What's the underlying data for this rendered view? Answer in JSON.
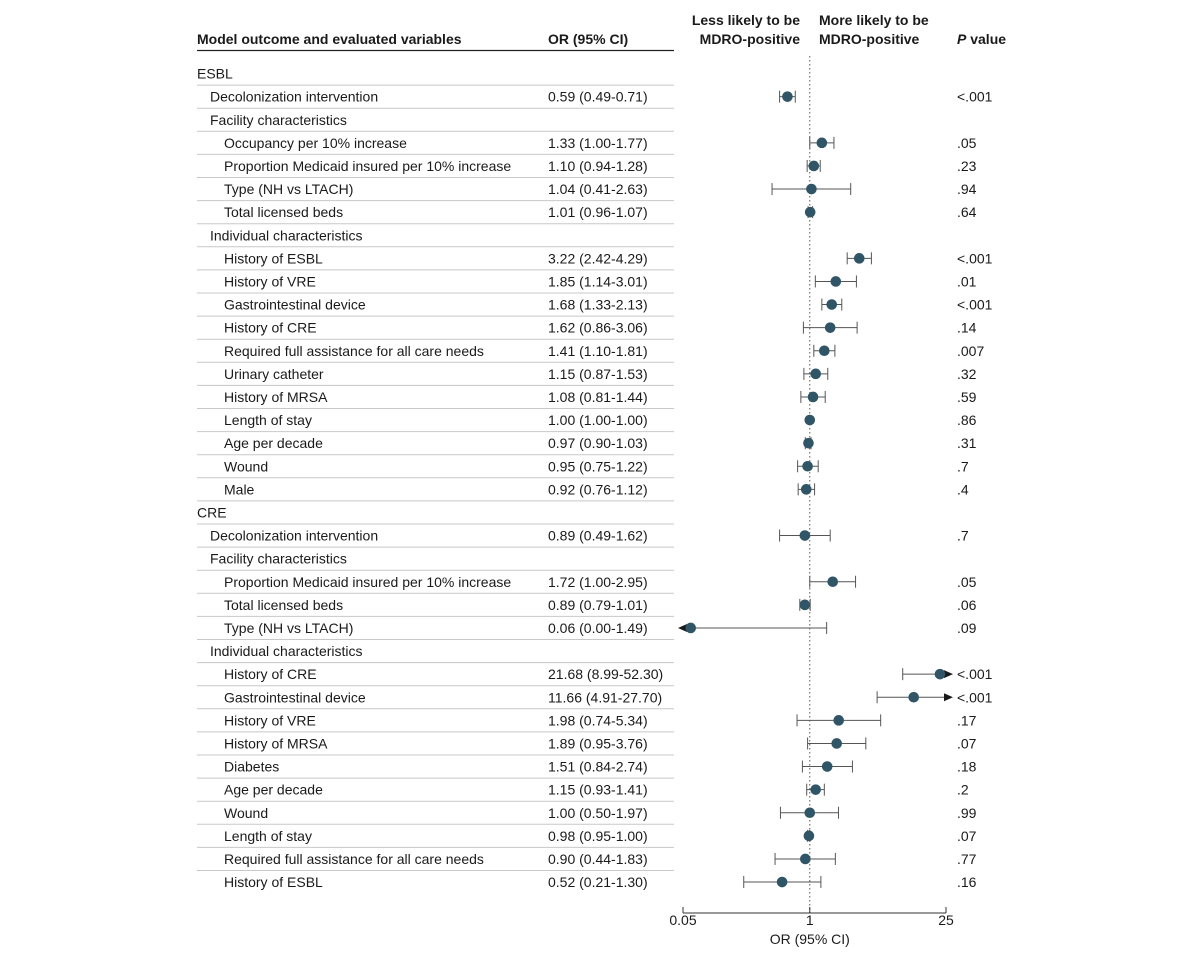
{
  "header": {
    "col_variable": "Model outcome and evaluated variables",
    "col_or": "OR (95% CI)",
    "less_likely": [
      "Less likely to be",
      "MDRO-positive"
    ],
    "more_likely": [
      "More likely to be",
      "MDRO-positive"
    ],
    "p_italic": "P",
    "p_rest": " value"
  },
  "chart_data": {
    "type": "forest",
    "scale": "log",
    "xlabel": "OR (95% CI)",
    "xlim": [
      0.05,
      25
    ],
    "x_ticks": [
      0.05,
      1,
      25
    ],
    "x_tick_labels": [
      "0.05",
      "1",
      "25"
    ],
    "reference_line": 1,
    "colors": {
      "point": "#2f5566",
      "whisker": "#555555",
      "divider": "#c8c8c8",
      "reference": "#555555"
    },
    "rows": [
      {
        "label": "ESBL",
        "indent": 0,
        "type": "group"
      },
      {
        "label": "Decolonization intervention",
        "indent": 1,
        "ci_text": "0.59 (0.49-0.71)",
        "p": "<.001",
        "or": 0.59,
        "lo": 0.49,
        "hi": 0.71
      },
      {
        "label": "Facility characteristics",
        "indent": 1,
        "type": "group"
      },
      {
        "label": "Occupancy per 10% increase",
        "indent": 2,
        "ci_text": "1.33 (1.00-1.77)",
        "p": ".05",
        "or": 1.33,
        "lo": 1.0,
        "hi": 1.77
      },
      {
        "label": "Proportion Medicaid insured per 10% increase",
        "indent": 2,
        "ci_text": "1.10 (0.94-1.28)",
        "p": ".23",
        "or": 1.1,
        "lo": 0.94,
        "hi": 1.28
      },
      {
        "label": "Type (NH vs LTACH)",
        "indent": 2,
        "ci_text": "1.04 (0.41-2.63)",
        "p": ".94",
        "or": 1.04,
        "lo": 0.41,
        "hi": 2.63
      },
      {
        "label": "Total licensed beds",
        "indent": 2,
        "ci_text": "1.01 (0.96-1.07)",
        "p": ".64",
        "or": 1.01,
        "lo": 0.96,
        "hi": 1.07
      },
      {
        "label": "Individual characteristics",
        "indent": 1,
        "type": "group"
      },
      {
        "label": "History of ESBL",
        "indent": 2,
        "ci_text": "3.22 (2.42-4.29)",
        "p": "<.001",
        "or": 3.22,
        "lo": 2.42,
        "hi": 4.29
      },
      {
        "label": "History of VRE",
        "indent": 2,
        "ci_text": "1.85 (1.14-3.01)",
        "p": ".01",
        "or": 1.85,
        "lo": 1.14,
        "hi": 3.01
      },
      {
        "label": "Gastrointestinal device",
        "indent": 2,
        "ci_text": "1.68 (1.33-2.13)",
        "p": "<.001",
        "or": 1.68,
        "lo": 1.33,
        "hi": 2.13
      },
      {
        "label": "History of CRE",
        "indent": 2,
        "ci_text": "1.62 (0.86-3.06)",
        "p": ".14",
        "or": 1.62,
        "lo": 0.86,
        "hi": 3.06
      },
      {
        "label": "Required full assistance for all care needs",
        "indent": 2,
        "ci_text": "1.41 (1.10-1.81)",
        "p": ".007",
        "or": 1.41,
        "lo": 1.1,
        "hi": 1.81
      },
      {
        "label": "Urinary catheter",
        "indent": 2,
        "ci_text": "1.15 (0.87-1.53)",
        "p": ".32",
        "or": 1.15,
        "lo": 0.87,
        "hi": 1.53
      },
      {
        "label": "History of MRSA",
        "indent": 2,
        "ci_text": "1.08 (0.81-1.44)",
        "p": ".59",
        "or": 1.08,
        "lo": 0.81,
        "hi": 1.44
      },
      {
        "label": "Length of stay",
        "indent": 2,
        "ci_text": "1.00 (1.00-1.00)",
        "p": ".86",
        "or": 1.0,
        "lo": 1.0,
        "hi": 1.0
      },
      {
        "label": "Age per decade",
        "indent": 2,
        "ci_text": "0.97 (0.90-1.03)",
        "p": ".31",
        "or": 0.97,
        "lo": 0.9,
        "hi": 1.03
      },
      {
        "label": "Wound",
        "indent": 2,
        "ci_text": "0.95 (0.75-1.22)",
        "p": ".7",
        "or": 0.95,
        "lo": 0.75,
        "hi": 1.22
      },
      {
        "label": "Male",
        "indent": 2,
        "ci_text": "0.92 (0.76-1.12)",
        "p": ".4",
        "or": 0.92,
        "lo": 0.76,
        "hi": 1.12
      },
      {
        "label": "CRE",
        "indent": 0,
        "type": "group"
      },
      {
        "label": "Decolonization intervention",
        "indent": 1,
        "ci_text": "0.89 (0.49-1.62)",
        "p": ".7",
        "or": 0.89,
        "lo": 0.49,
        "hi": 1.62
      },
      {
        "label": "Facility characteristics",
        "indent": 1,
        "type": "group"
      },
      {
        "label": "Proportion Medicaid insured per 10% increase",
        "indent": 2,
        "ci_text": "1.72 (1.00-2.95)",
        "p": ".05",
        "or": 1.72,
        "lo": 1.0,
        "hi": 2.95
      },
      {
        "label": "Total licensed beds",
        "indent": 2,
        "ci_text": "0.89 (0.79-1.01)",
        "p": ".06",
        "or": 0.89,
        "lo": 0.79,
        "hi": 1.01
      },
      {
        "label": "Type (NH vs LTACH)",
        "indent": 2,
        "ci_text": "0.06 (0.00-1.49)",
        "p": ".09",
        "or": 0.06,
        "lo": 0.0,
        "hi": 1.49
      },
      {
        "label": "Individual characteristics",
        "indent": 1,
        "type": "group"
      },
      {
        "label": "History of CRE",
        "indent": 2,
        "ci_text": "21.68 (8.99-52.30)",
        "p": "<.001",
        "or": 21.68,
        "lo": 8.99,
        "hi": 52.3
      },
      {
        "label": "Gastrointestinal device",
        "indent": 2,
        "ci_text": "11.66 (4.91-27.70)",
        "p": "<.001",
        "or": 11.66,
        "lo": 4.91,
        "hi": 27.7
      },
      {
        "label": "History of VRE",
        "indent": 2,
        "ci_text": "1.98 (0.74-5.34)",
        "p": ".17",
        "or": 1.98,
        "lo": 0.74,
        "hi": 5.34
      },
      {
        "label": "History of MRSA",
        "indent": 2,
        "ci_text": "1.89 (0.95-3.76)",
        "p": ".07",
        "or": 1.89,
        "lo": 0.95,
        "hi": 3.76
      },
      {
        "label": "Diabetes",
        "indent": 2,
        "ci_text": "1.51 (0.84-2.74)",
        "p": ".18",
        "or": 1.51,
        "lo": 0.84,
        "hi": 2.74
      },
      {
        "label": "Age per decade",
        "indent": 2,
        "ci_text": "1.15 (0.93-1.41)",
        "p": ".2",
        "or": 1.15,
        "lo": 0.93,
        "hi": 1.41
      },
      {
        "label": "Wound",
        "indent": 2,
        "ci_text": "1.00 (0.50-1.97)",
        "p": ".99",
        "or": 1.0,
        "lo": 0.5,
        "hi": 1.97
      },
      {
        "label": "Length of stay",
        "indent": 2,
        "ci_text": "0.98 (0.95-1.00)",
        "p": ".07",
        "or": 0.98,
        "lo": 0.95,
        "hi": 1.0
      },
      {
        "label": "Required full assistance for all care needs",
        "indent": 2,
        "ci_text": "0.90 (0.44-1.83)",
        "p": ".77",
        "or": 0.9,
        "lo": 0.44,
        "hi": 1.83
      },
      {
        "label": "History of ESBL",
        "indent": 2,
        "ci_text": "0.52 (0.21-1.30)",
        "p": ".16",
        "or": 0.52,
        "lo": 0.21,
        "hi": 1.3
      }
    ]
  }
}
